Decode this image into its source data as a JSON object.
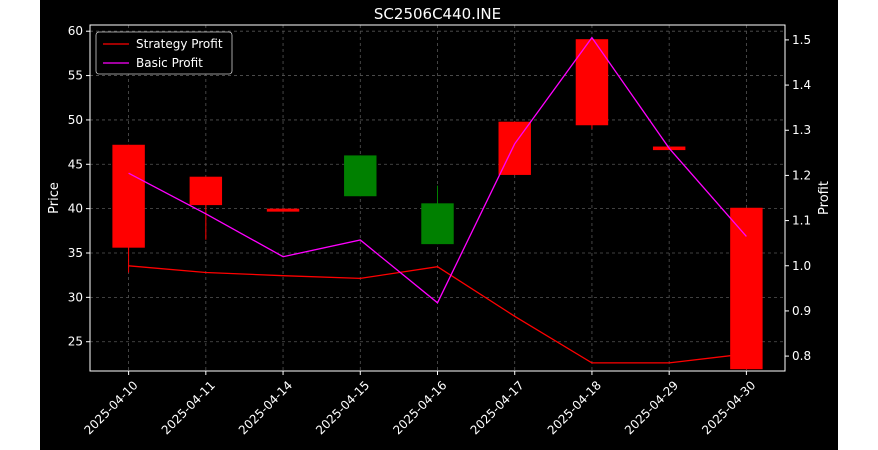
{
  "chart_data": {
    "type": "candlestick+line",
    "title": "SC2506C440.INE",
    "xlabel": "",
    "ylabel_left": "Price",
    "ylabel_right": "Profit",
    "categories": [
      "2025-04-10",
      "2025-04-11",
      "2025-04-14",
      "2025-04-15",
      "2025-04-16",
      "2025-04-17",
      "2025-04-18",
      "2025-04-29",
      "2025-04-30"
    ],
    "ylim_left": [
      21.7,
      60.7
    ],
    "yticks_left": [
      25,
      30,
      35,
      40,
      45,
      50,
      55,
      60
    ],
    "ylim_right": [
      0.767,
      1.533
    ],
    "yticks_right": [
      0.8,
      0.9,
      1.0,
      1.1,
      1.2,
      1.3,
      1.4,
      1.5
    ],
    "grid": true,
    "legend_placement": "top-left",
    "candles": [
      {
        "date": "2025-04-10",
        "open": 35.6,
        "close": 47.2,
        "high": 47.2,
        "low": 32.8,
        "color": "red"
      },
      {
        "date": "2025-04-11",
        "open": 40.4,
        "close": 43.6,
        "high": 43.6,
        "low": 36.5,
        "color": "red"
      },
      {
        "date": "2025-04-14",
        "open": 39.8,
        "close": 40.0,
        "high": 40.0,
        "low": 39.8,
        "color": "red"
      },
      {
        "date": "2025-04-15",
        "open": 46.0,
        "close": 41.4,
        "high": 46.0,
        "low": 41.4,
        "color": "green"
      },
      {
        "date": "2025-04-16",
        "open": 40.6,
        "close": 36.0,
        "high": 42.6,
        "low": 36.0,
        "color": "green"
      },
      {
        "date": "2025-04-17",
        "open": 43.8,
        "close": 49.8,
        "high": 49.8,
        "low": 43.8,
        "color": "red"
      },
      {
        "date": "2025-04-18",
        "open": 49.4,
        "close": 59.1,
        "high": 59.1,
        "low": 49.0,
        "color": "red"
      },
      {
        "date": "2025-04-29",
        "open": 46.6,
        "close": 47.0,
        "high": 47.0,
        "low": 46.6,
        "color": "red"
      },
      {
        "date": "2025-04-30",
        "open": 21.9,
        "close": 40.1,
        "high": 40.1,
        "low": 21.9,
        "color": "red"
      }
    ],
    "series": [
      {
        "name": "Strategy Profit",
        "color": "#ff0000",
        "values": [
          1.0,
          0.985,
          0.978,
          0.972,
          0.998,
          0.888,
          0.785,
          0.785,
          0.805
        ]
      },
      {
        "name": "Basic Profit",
        "color": "#ff00ff",
        "values": [
          1.205,
          1.115,
          1.02,
          1.057,
          0.918,
          1.27,
          1.505,
          1.26,
          1.065
        ]
      }
    ],
    "colors": {
      "background": "#000000",
      "up": "#ff0000",
      "down": "#008000",
      "axis": "#ffffff",
      "grid": "#555555"
    }
  }
}
